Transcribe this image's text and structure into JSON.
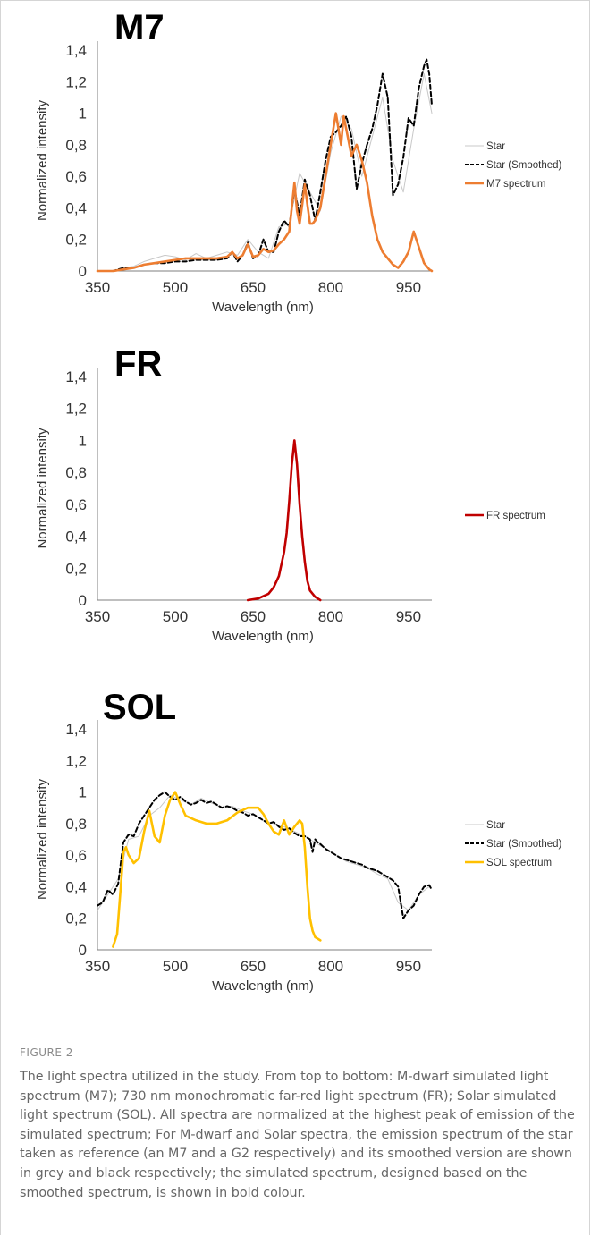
{
  "chart_data": [
    {
      "type": "line",
      "title": "M7",
      "xlabel": "Wavelength (nm)",
      "ylabel": "Normalized intensity",
      "xlim": [
        350,
        995
      ],
      "ylim": [
        0,
        1.4
      ],
      "xticks": [
        "350",
        "500",
        "650",
        "800",
        "950"
      ],
      "xtick_values": [
        350,
        500,
        650,
        800,
        950
      ],
      "yticks": [
        "0",
        "0,2",
        "0,4",
        "0,6",
        "0,8",
        "1",
        "1,2",
        "1,4"
      ],
      "ytick_values": [
        0,
        0.2,
        0.4,
        0.6,
        0.8,
        1.0,
        1.2,
        1.4
      ],
      "legend_position": "right",
      "series": [
        {
          "name": "Star",
          "color": "#c8c8c8",
          "style": "thin",
          "x": [
            380,
            400,
            420,
            440,
            460,
            480,
            500,
            520,
            540,
            560,
            580,
            600,
            620,
            640,
            660,
            680,
            700,
            720,
            740,
            760,
            780,
            800,
            820,
            840,
            860,
            880,
            900,
            920,
            940,
            960,
            980,
            995
          ],
          "y": [
            0,
            0.02,
            0.03,
            0.06,
            0.08,
            0.1,
            0.09,
            0.07,
            0.11,
            0.08,
            0.1,
            0.12,
            0.1,
            0.2,
            0.12,
            0.08,
            0.28,
            0.3,
            0.62,
            0.5,
            0.38,
            0.75,
            0.98,
            0.9,
            0.6,
            0.85,
            1.1,
            0.7,
            0.5,
            0.9,
            1.25,
            1.0
          ]
        },
        {
          "name": "Star (Smoothed)",
          "color": "#000000",
          "style": "dashed",
          "x": [
            350,
            380,
            400,
            420,
            440,
            460,
            480,
            500,
            520,
            540,
            560,
            580,
            600,
            610,
            620,
            630,
            640,
            650,
            660,
            670,
            680,
            690,
            700,
            710,
            720,
            730,
            740,
            750,
            760,
            770,
            780,
            790,
            800,
            810,
            820,
            830,
            840,
            850,
            860,
            870,
            880,
            890,
            900,
            910,
            920,
            930,
            940,
            950,
            960,
            970,
            980,
            985,
            990,
            995
          ],
          "y": [
            0,
            0,
            0.02,
            0.02,
            0.04,
            0.05,
            0.05,
            0.06,
            0.06,
            0.07,
            0.07,
            0.07,
            0.08,
            0.12,
            0.06,
            0.1,
            0.18,
            0.08,
            0.1,
            0.2,
            0.12,
            0.12,
            0.25,
            0.32,
            0.28,
            0.52,
            0.35,
            0.58,
            0.48,
            0.32,
            0.5,
            0.7,
            0.85,
            0.88,
            0.92,
            0.98,
            0.85,
            0.52,
            0.68,
            0.8,
            0.9,
            1.05,
            1.25,
            1.1,
            0.48,
            0.55,
            0.72,
            0.97,
            0.92,
            1.16,
            1.3,
            1.34,
            1.25,
            1.05
          ]
        },
        {
          "name": "M7 spectrum",
          "color": "#ed7d31",
          "style": "solid",
          "x": [
            350,
            380,
            400,
            420,
            440,
            460,
            480,
            500,
            520,
            540,
            560,
            580,
            600,
            610,
            620,
            630,
            640,
            650,
            660,
            670,
            680,
            690,
            700,
            710,
            720,
            730,
            735,
            740,
            745,
            750,
            755,
            760,
            765,
            770,
            780,
            790,
            800,
            810,
            820,
            825,
            830,
            840,
            850,
            855,
            860,
            870,
            880,
            890,
            900,
            910,
            920,
            930,
            940,
            950,
            960,
            970,
            980,
            990,
            995
          ],
          "y": [
            0,
            0,
            0.01,
            0.02,
            0.04,
            0.05,
            0.06,
            0.07,
            0.08,
            0.08,
            0.08,
            0.08,
            0.09,
            0.12,
            0.08,
            0.1,
            0.17,
            0.09,
            0.1,
            0.14,
            0.12,
            0.13,
            0.17,
            0.2,
            0.25,
            0.56,
            0.38,
            0.3,
            0.42,
            0.55,
            0.42,
            0.3,
            0.3,
            0.32,
            0.4,
            0.6,
            0.8,
            1.0,
            0.8,
            0.98,
            0.9,
            0.73,
            0.8,
            0.75,
            0.7,
            0.56,
            0.35,
            0.2,
            0.12,
            0.08,
            0.04,
            0.02,
            0.06,
            0.12,
            0.25,
            0.15,
            0.05,
            0.01,
            0
          ]
        }
      ]
    },
    {
      "type": "line",
      "title": "FR",
      "xlabel": "Wavelength (nm)",
      "ylabel": "Normalized intensity",
      "xlim": [
        350,
        995
      ],
      "ylim": [
        0,
        1.4
      ],
      "xticks": [
        "350",
        "500",
        "650",
        "800",
        "950"
      ],
      "xtick_values": [
        350,
        500,
        650,
        800,
        950
      ],
      "yticks": [
        "0",
        "0,2",
        "0,4",
        "0,6",
        "0,8",
        "1",
        "1,2",
        "1,4"
      ],
      "ytick_values": [
        0,
        0.2,
        0.4,
        0.6,
        0.8,
        1.0,
        1.2,
        1.4
      ],
      "legend_position": "right",
      "series": [
        {
          "name": "FR spectrum",
          "color": "#c00000",
          "style": "solid",
          "x": [
            640,
            660,
            680,
            690,
            700,
            710,
            715,
            720,
            725,
            730,
            735,
            740,
            745,
            750,
            755,
            760,
            770,
            780
          ],
          "y": [
            0,
            0.01,
            0.04,
            0.08,
            0.15,
            0.3,
            0.42,
            0.62,
            0.85,
            1.0,
            0.85,
            0.6,
            0.4,
            0.24,
            0.12,
            0.06,
            0.02,
            0
          ]
        }
      ]
    },
    {
      "type": "line",
      "title": "SOL",
      "xlabel": "Wavelength (nm)",
      "ylabel": "Normalized intensity",
      "xlim": [
        350,
        995
      ],
      "ylim": [
        0,
        1.4
      ],
      "xticks": [
        "350",
        "500",
        "650",
        "800",
        "950"
      ],
      "xtick_values": [
        350,
        500,
        650,
        800,
        950
      ],
      "yticks": [
        "0",
        "0,2",
        "0,4",
        "0,6",
        "0,8",
        "1",
        "1,2",
        "1,4"
      ],
      "ytick_values": [
        0,
        0.2,
        0.4,
        0.6,
        0.8,
        1.0,
        1.2,
        1.4
      ],
      "legend_position": "right",
      "series": [
        {
          "name": "Star",
          "color": "#c8c8c8",
          "style": "thin",
          "x": [
            350,
            370,
            390,
            410,
            430,
            450,
            470,
            490,
            510,
            530,
            550,
            570,
            590,
            610,
            630,
            650,
            670,
            690,
            710,
            730,
            750,
            770,
            790,
            810,
            830,
            850,
            870,
            890,
            910,
            930,
            950,
            970,
            990
          ],
          "y": [
            0.25,
            0.35,
            0.45,
            0.7,
            0.72,
            0.85,
            0.9,
            0.98,
            0.95,
            0.92,
            0.96,
            0.93,
            0.9,
            0.91,
            0.88,
            0.86,
            0.82,
            0.8,
            0.78,
            0.75,
            0.72,
            0.68,
            0.64,
            0.6,
            0.56,
            0.54,
            0.52,
            0.48,
            0.45,
            0.3,
            0.25,
            0.35,
            0.4
          ]
        },
        {
          "name": "Star (Smoothed)",
          "color": "#000000",
          "style": "dashed",
          "x": [
            350,
            360,
            370,
            380,
            390,
            400,
            410,
            420,
            430,
            440,
            450,
            460,
            470,
            480,
            490,
            500,
            510,
            520,
            530,
            540,
            550,
            560,
            570,
            580,
            590,
            600,
            610,
            620,
            630,
            640,
            650,
            660,
            670,
            680,
            690,
            700,
            710,
            720,
            730,
            740,
            750,
            760,
            765,
            770,
            775,
            780,
            790,
            800,
            810,
            820,
            830,
            840,
            850,
            860,
            870,
            880,
            890,
            900,
            910,
            920,
            930,
            935,
            940,
            950,
            960,
            970,
            980,
            990,
            995
          ],
          "y": [
            0.28,
            0.3,
            0.38,
            0.35,
            0.42,
            0.68,
            0.73,
            0.72,
            0.8,
            0.85,
            0.9,
            0.95,
            0.98,
            1.0,
            0.97,
            0.95,
            0.97,
            0.94,
            0.92,
            0.93,
            0.95,
            0.93,
            0.94,
            0.92,
            0.9,
            0.91,
            0.9,
            0.88,
            0.87,
            0.85,
            0.86,
            0.84,
            0.82,
            0.8,
            0.81,
            0.78,
            0.76,
            0.77,
            0.74,
            0.72,
            0.72,
            0.7,
            0.62,
            0.7,
            0.68,
            0.67,
            0.64,
            0.62,
            0.6,
            0.58,
            0.57,
            0.56,
            0.55,
            0.54,
            0.52,
            0.51,
            0.5,
            0.48,
            0.46,
            0.44,
            0.4,
            0.3,
            0.2,
            0.25,
            0.28,
            0.35,
            0.4,
            0.41,
            0.38
          ]
        },
        {
          "name": "SOL spectrum",
          "color": "#ffc000",
          "style": "solid",
          "x": [
            380,
            388,
            395,
            400,
            405,
            410,
            420,
            430,
            440,
            450,
            460,
            470,
            480,
            490,
            500,
            510,
            520,
            540,
            560,
            580,
            600,
            620,
            640,
            660,
            670,
            680,
            690,
            700,
            710,
            720,
            730,
            740,
            745,
            750,
            755,
            760,
            765,
            770,
            780
          ],
          "y": [
            0.02,
            0.1,
            0.4,
            0.62,
            0.65,
            0.6,
            0.55,
            0.58,
            0.75,
            0.88,
            0.72,
            0.68,
            0.85,
            0.95,
            1.0,
            0.92,
            0.85,
            0.82,
            0.8,
            0.8,
            0.82,
            0.87,
            0.9,
            0.9,
            0.86,
            0.8,
            0.75,
            0.73,
            0.82,
            0.73,
            0.78,
            0.82,
            0.8,
            0.65,
            0.4,
            0.2,
            0.12,
            0.08,
            0.06
          ]
        }
      ]
    }
  ],
  "caption": {
    "label": "FIGURE 2",
    "text": "The light spectra utilized in the study. From top to bottom: M-dwarf simulated light spectrum (M7); 730 nm monochromatic far-red light spectrum (FR); Solar simulated light spectrum (SOL). All spectra are normalized at the highest peak of emission of the simulated spectrum; For M-dwarf and Solar spectra, the emission spectrum of the star taken as reference (an M7 and a G2 respectively) and its smoothed version are shown in grey and black respectively; the simulated spectrum, designed based on the smoothed spectrum, is shown in bold colour."
  }
}
